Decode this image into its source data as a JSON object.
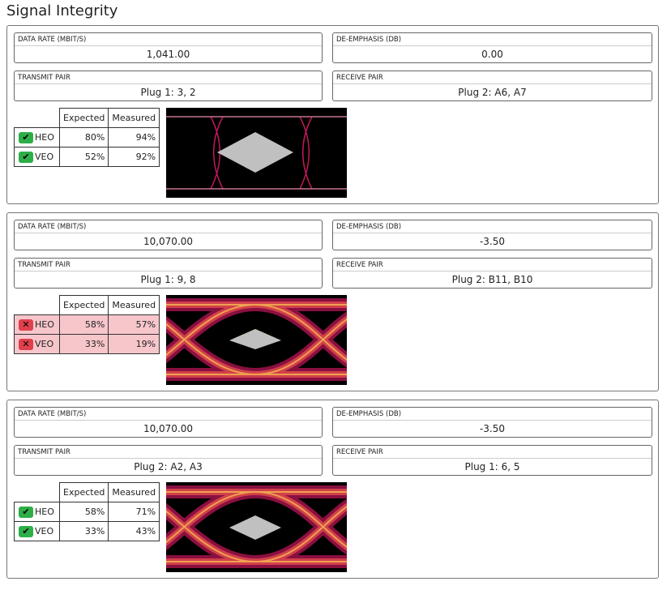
{
  "title": "Signal Integrity",
  "labels": {
    "data_rate": "DATA RATE (MBIT/S)",
    "de_emphasis": "DE-EMPHASIS (DB)",
    "transmit_pair": "TRANSMIT PAIR",
    "receive_pair": "RECEIVE PAIR",
    "expected": "Expected",
    "measured": "Measured"
  },
  "colors": {
    "pass": "#2eae47",
    "fail": "#e0404c",
    "fail_row": "#f6c6cb"
  },
  "panels": [
    {
      "data_rate": "1,041.00",
      "de_emphasis": "0.00",
      "transmit_pair": "Plug 1: 3, 2",
      "receive_pair": "Plug 2: A6, A7",
      "rows": [
        {
          "name": "HEO",
          "status": "pass",
          "icon": "check-icon",
          "expected": "80%",
          "measured": "94%"
        },
        {
          "name": "VEO",
          "status": "pass",
          "icon": "check-icon",
          "expected": "52%",
          "measured": "92%"
        }
      ]
    },
    {
      "data_rate": "10,070.00",
      "de_emphasis": "-3.50",
      "transmit_pair": "Plug 1: 9, 8",
      "receive_pair": "Plug 2: B11, B10",
      "rows": [
        {
          "name": "HEO",
          "status": "fail",
          "icon": "x-icon",
          "expected": "58%",
          "measured": "57%"
        },
        {
          "name": "VEO",
          "status": "fail",
          "icon": "x-icon",
          "expected": "33%",
          "measured": "19%"
        }
      ]
    },
    {
      "data_rate": "10,070.00",
      "de_emphasis": "-3.50",
      "transmit_pair": "Plug 2: A2, A3",
      "receive_pair": "Plug 1: 6, 5",
      "rows": [
        {
          "name": "HEO",
          "status": "pass",
          "icon": "check-icon",
          "expected": "58%",
          "measured": "71%"
        },
        {
          "name": "VEO",
          "status": "pass",
          "icon": "check-icon",
          "expected": "33%",
          "measured": "43%"
        }
      ]
    }
  ]
}
